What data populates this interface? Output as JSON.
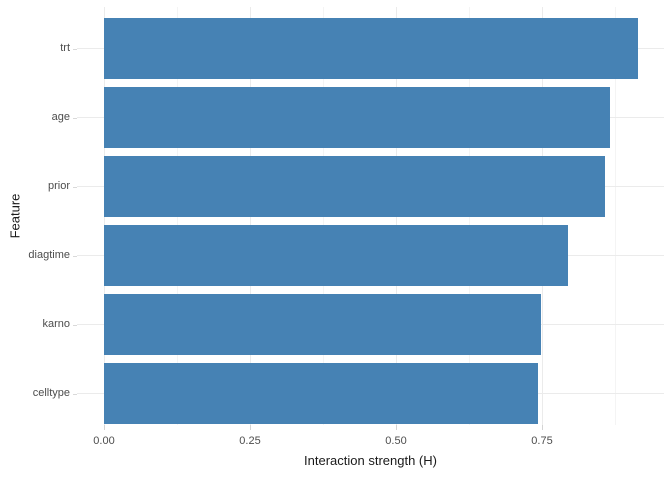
{
  "chart_data": {
    "type": "bar",
    "orientation": "horizontal",
    "title": "",
    "xlabel": "Interaction strength (H)",
    "ylabel": "Feature",
    "categories": [
      "trt",
      "age",
      "prior",
      "diagtime",
      "karno",
      "celltype"
    ],
    "values": [
      0.914,
      0.867,
      0.858,
      0.794,
      0.749,
      0.744
    ],
    "xlim": [
      -0.046,
      0.959
    ],
    "x_major_ticks": [
      0,
      0.25,
      0.5,
      0.75
    ],
    "x_tick_labels": [
      "0.00",
      "0.25",
      "0.50",
      "0.75"
    ],
    "x_minor_ticks": [
      0.125,
      0.375,
      0.625,
      0.875
    ],
    "grid": true,
    "legend": "none",
    "colors": {
      "bar_fill": "#4682B4",
      "grid_major": "#ebebeb",
      "grid_minor": "#f4f4f4",
      "tick_mark": "#d4d4d4",
      "axis_text": "#4d4d4d",
      "axis_title": "#1a1a1a",
      "background": "#ffffff"
    }
  }
}
